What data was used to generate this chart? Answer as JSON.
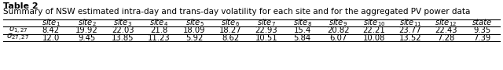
{
  "title": "Table 2",
  "subtitle": "Summary of NSW estimated intra-day and trans-day volatility for each site and for the aggregated PV power data",
  "col_headers": [
    "site$_1$",
    "site$_2$",
    "site$_3$",
    "site$_4$",
    "site$_5$",
    "site$_6$",
    "site$_7$",
    "site$_8$",
    "site$_9$",
    "site$_{10}$",
    "site$_{11}$",
    "site$_{12}$",
    "state"
  ],
  "row_labels": [
    "$\\sigma_{1,27}$",
    "$\\sigma_{27,27}$"
  ],
  "row1": [
    "8.42",
    "19.92",
    "22.03",
    "21.8",
    "18.09",
    "18.27",
    "22.93",
    "15.4",
    "20.82",
    "22.21",
    "23.77",
    "22.43",
    "9.35"
  ],
  "row2": [
    "12.0",
    "9.45",
    "13.85",
    "11.23",
    "5.92",
    "8.62",
    "10.51",
    "5.84",
    "6.07",
    "10.08",
    "13.52",
    "7.28",
    "7.39"
  ],
  "background": "#ffffff",
  "text_color": "#000000",
  "font_size": 7.2,
  "title_font_size": 8.0,
  "subtitle_font_size": 7.5
}
